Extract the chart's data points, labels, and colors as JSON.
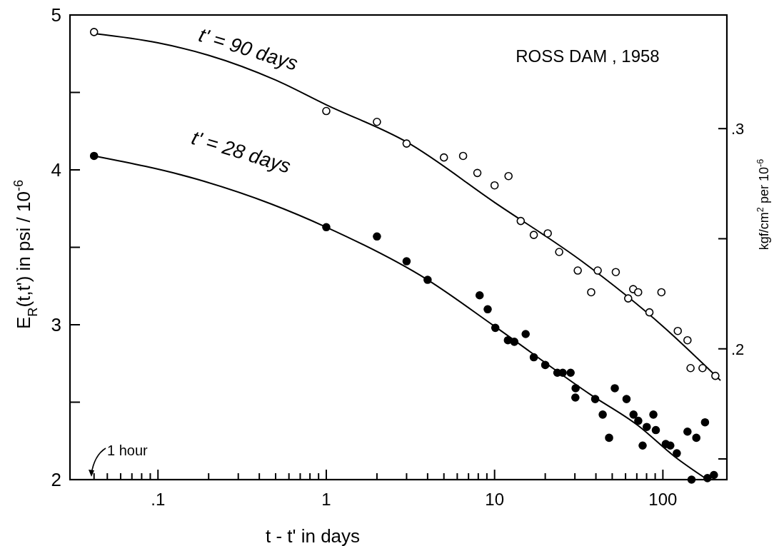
{
  "chart_data": {
    "type": "scatter",
    "title": "ROSS DAM , 1958",
    "xlabel": "t - t' in days",
    "ylabel": "E$_{R}$(t,t') in psi / 10$^{-6}$",
    "y2label": "kgf/cm$^{2}$ per 10$^{-6}$",
    "log": "x",
    "line_style": "solid",
    "xlim": [
      0.03,
      240
    ],
    "xticks": [
      {
        "value": 0.0417,
        "label": null
      },
      {
        "value": 0.05,
        "label": null
      },
      {
        "value": 0.06,
        "label": null
      },
      {
        "value": 0.07,
        "label": null
      },
      {
        "value": 0.08,
        "label": null
      },
      {
        "value": 0.09,
        "label": null
      },
      {
        "value": 0.1,
        "label": ".1"
      },
      {
        "value": 0.2,
        "label": null
      },
      {
        "value": 0.3,
        "label": null
      },
      {
        "value": 0.4,
        "label": null
      },
      {
        "value": 0.5,
        "label": null
      },
      {
        "value": 0.6,
        "label": null
      },
      {
        "value": 0.7,
        "label": null
      },
      {
        "value": 0.8,
        "label": null
      },
      {
        "value": 0.9,
        "label": null
      },
      1,
      {
        "value": 2,
        "label": null
      },
      {
        "value": 3,
        "label": null
      },
      {
        "value": 4,
        "label": null
      },
      {
        "value": 5,
        "label": null
      },
      {
        "value": 6,
        "label": null
      },
      {
        "value": 7,
        "label": null
      },
      {
        "value": 8,
        "label": null
      },
      {
        "value": 9,
        "label": null
      },
      10,
      {
        "value": 20,
        "label": null
      },
      {
        "value": 30,
        "label": null
      },
      {
        "value": 40,
        "label": null
      },
      {
        "value": 50,
        "label": null
      },
      {
        "value": 60,
        "label": null
      },
      {
        "value": 70,
        "label": null
      },
      {
        "value": 80,
        "label": null
      },
      {
        "value": 90,
        "label": null
      },
      100
    ],
    "ylim": [
      2,
      5
    ],
    "yticks": [
      2,
      {
        "value": 2.5,
        "label": null
      },
      3,
      {
        "value": 3.5,
        "label": null
      },
      4,
      {
        "value": 4.5,
        "label": null
      },
      5
    ],
    "y2lim": [
      0.1406,
      0.3516
    ],
    "y2ticks": [
      {
        "value": 0.15,
        "label": null
      },
      {
        "value": 0.2,
        "label": ".2"
      },
      {
        "value": 0.25,
        "label": null
      },
      {
        "value": 0.3,
        "label": ".3"
      }
    ],
    "annotations": [
      "t' = 90 days",
      "t' = 28 days",
      "1 hour"
    ],
    "series": [
      {
        "type": "line",
        "color": "#000000",
        "x": [
          0.0417,
          0.1,
          0.2,
          0.5,
          1,
          3,
          10,
          33,
          100,
          220
        ],
        "values": [
          4.88,
          4.82,
          4.74,
          4.58,
          4.42,
          4.18,
          3.79,
          3.41,
          2.99,
          2.64
        ]
      },
      {
        "type": "line",
        "color": "#000000",
        "x": [
          0.0417,
          0.17,
          0.47,
          1,
          4,
          10,
          37,
          71,
          117,
          184
        ],
        "values": [
          4.09,
          3.94,
          3.78,
          3.63,
          3.29,
          2.99,
          2.55,
          2.35,
          2.15,
          2.0
        ]
      },
      {
        "marker": "circle",
        "color": "#000000",
        "x": [
          0.0417,
          1,
          2,
          3,
          5,
          6.5,
          7.9,
          10,
          12.1,
          14.3,
          17.1,
          20.7,
          24.2,
          31.2,
          41,
          52.5,
          37.5,
          62.2,
          66.6,
          71.3,
          83.2,
          98,
          122.6,
          140,
          146,
          172,
          205
        ],
        "values": [
          4.89,
          4.38,
          4.31,
          4.17,
          4.08,
          4.09,
          3.98,
          3.9,
          3.96,
          3.67,
          3.58,
          3.59,
          3.47,
          3.35,
          3.35,
          3.34,
          3.21,
          3.17,
          3.23,
          3.21,
          3.08,
          3.21,
          2.96,
          2.9,
          2.72,
          2.72,
          2.67
        ]
      },
      {
        "marker": "circle",
        "color": "#000000",
        "x": [
          0.0417,
          1,
          2,
          3,
          4,
          8.15,
          9.1,
          10.1,
          12,
          13.1,
          15.3,
          17.1,
          20,
          23.6,
          25.4,
          28.3,
          30.3,
          30.2,
          39.6,
          43.9,
          47.9,
          51.8,
          60.8,
          66.9,
          71.4,
          75.8,
          80.2,
          87.8,
          90.8,
          104,
          110.7,
          121,
          140,
          158,
          178,
          148,
          184,
          201
        ],
        "values": [
          4.09,
          3.63,
          3.57,
          3.41,
          3.29,
          3.19,
          3.1,
          2.98,
          2.9,
          2.89,
          2.94,
          2.79,
          2.74,
          2.69,
          2.69,
          2.69,
          2.59,
          2.53,
          2.52,
          2.42,
          2.27,
          2.59,
          2.52,
          2.42,
          2.38,
          2.22,
          2.34,
          2.42,
          2.32,
          2.23,
          2.22,
          2.17,
          2.31,
          2.27,
          2.37,
          2.0,
          2.01,
          2.03
        ]
      }
    ]
  }
}
